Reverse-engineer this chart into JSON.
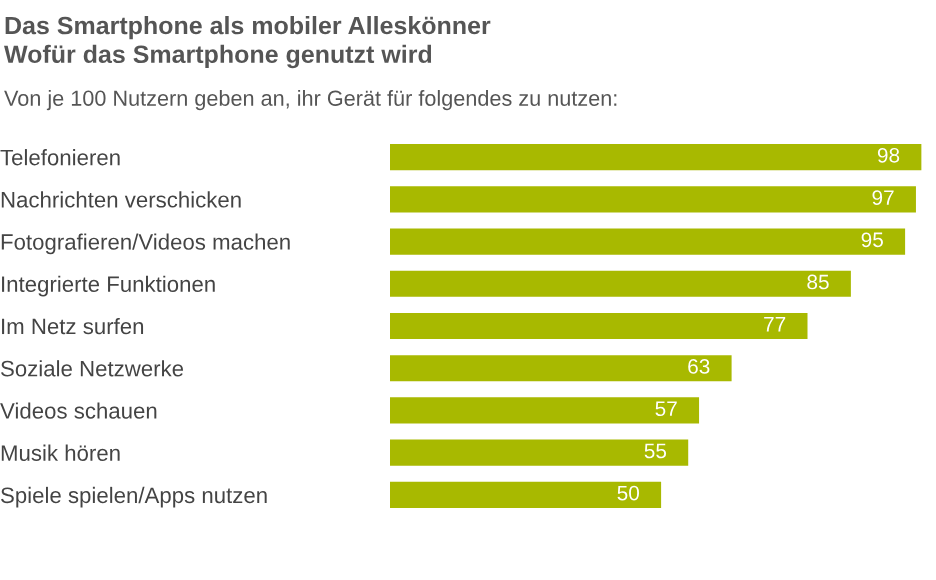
{
  "chart_data": {
    "type": "bar",
    "orientation": "horizontal",
    "title": "Das Smartphone als mobiler Alleskönner\nWofür das Smartphone genutzt wird",
    "subtitle": "Von je 100 Nutzern geben an, ihr Gerät für folgendes zu nutzen:",
    "categories": [
      "Telefonieren",
      "Nachrichten verschicken",
      "Fotografieren/Videos machen",
      "Integrierte Funktionen",
      "Im Netz surfen",
      "Soziale Netzwerke",
      "Videos schauen",
      "Musik hören",
      "Spiele spielen/Apps nutzen"
    ],
    "values": [
      98,
      97,
      95,
      85,
      77,
      63,
      57,
      55,
      50
    ],
    "color": "#a8b900",
    "data_labels": true,
    "tick_labels": "y",
    "grid": false,
    "legend": false
  }
}
